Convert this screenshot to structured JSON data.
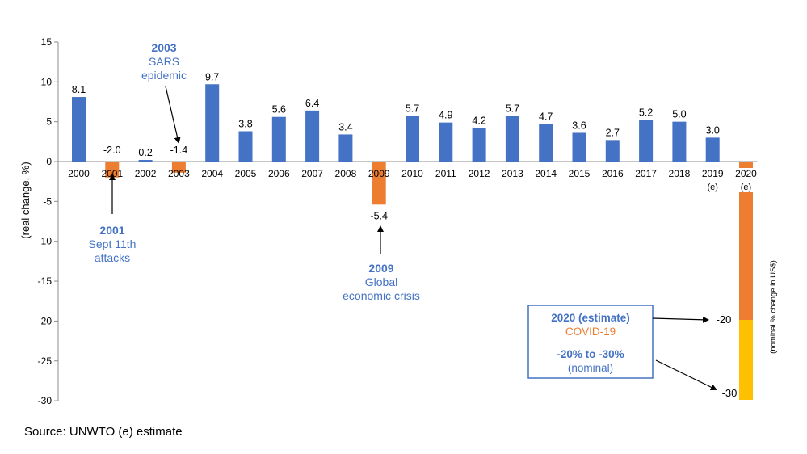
{
  "chart_data": {
    "type": "bar",
    "ylabel": "(real change, %)",
    "ylabel_right": "(nominal % change in US$)",
    "ylim": [
      -30,
      15
    ],
    "yticks": [
      15,
      10,
      5,
      0,
      -5,
      -10,
      -15,
      -20,
      -25,
      -30
    ],
    "grid": false,
    "categories": [
      "2000",
      "2001",
      "2002",
      "2003",
      "2004",
      "2005",
      "2006",
      "2007",
      "2008",
      "2009",
      "2010",
      "2011",
      "2012",
      "2013",
      "2014",
      "2015",
      "2016",
      "2017",
      "2018",
      "2019",
      "2020"
    ],
    "category_suffix": {
      "2019": "(e)",
      "2020": "(e)"
    },
    "values": [
      8.1,
      -2.0,
      0.2,
      -1.4,
      9.7,
      3.8,
      5.6,
      6.4,
      3.4,
      -5.4,
      5.7,
      4.9,
      4.2,
      5.7,
      4.7,
      3.6,
      2.7,
      5.2,
      5.0,
      3.0,
      -4
    ],
    "data_labels": [
      "8.1",
      "-2.0",
      "0.2",
      "-1.4",
      "9.7",
      "3.8",
      "5.6",
      "6.4",
      "3.4",
      "-5.4",
      "5.7",
      "4.9",
      "4.2",
      "5.7",
      "4.7",
      "3.6",
      "2.7",
      "5.2",
      "5.0",
      "3.0",
      ""
    ],
    "highlight_categories": [
      "2001",
      "2003",
      "2009",
      "2020"
    ],
    "colors": {
      "positive": "#4472C4",
      "negative": "#ED7D31",
      "nominal_high": "#ED7D31",
      "nominal_low": "#FFC000",
      "annotation_text": "#4472C4",
      "covid_text": "#ED7D31",
      "frame": "#4472C4"
    },
    "nominal_2020": {
      "range": [
        -20,
        -30
      ],
      "labels": [
        "-20",
        "-30"
      ]
    },
    "annotations": {
      "a2003": {
        "year": "2003",
        "text": [
          "SARS",
          "epidemic"
        ]
      },
      "a2001": {
        "year": "2001",
        "text": [
          "Sept 11th",
          "attacks"
        ]
      },
      "a2009": {
        "year": "2009",
        "text": [
          "Global",
          "economic crisis"
        ]
      },
      "box2020": {
        "title": "2020 (estimate)",
        "subtitle": "COVID-19",
        "range": "-20% to -30%",
        "note": "(nominal)"
      }
    }
  },
  "source": "Source: UNWTO  (e) estimate"
}
